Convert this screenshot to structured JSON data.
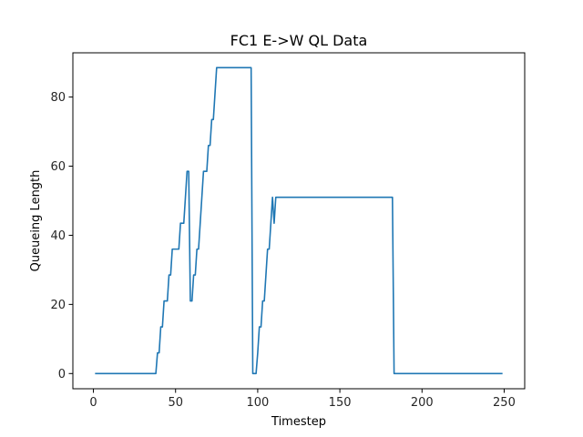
{
  "chart_data": {
    "type": "line",
    "title": "FC1 E->W QL Data",
    "xlabel": "Timestep",
    "ylabel": "Queueing Length",
    "xlim": [
      -12.5,
      262.5
    ],
    "ylim": [
      -4.4,
      92.8
    ],
    "xticks": [
      0,
      50,
      100,
      150,
      200,
      250
    ],
    "yticks": [
      0,
      20,
      40,
      60,
      80
    ],
    "grid": false,
    "series": [
      {
        "color": "#1f77b4",
        "points": [
          [
            1,
            0
          ],
          [
            38,
            0
          ],
          [
            39,
            6
          ],
          [
            40,
            6
          ],
          [
            41,
            13.5
          ],
          [
            42,
            13.5
          ],
          [
            43,
            21
          ],
          [
            45,
            21
          ],
          [
            46,
            28.5
          ],
          [
            47,
            28.5
          ],
          [
            48,
            36
          ],
          [
            52,
            36
          ],
          [
            53,
            43.5
          ],
          [
            55,
            43.5
          ],
          [
            56,
            51
          ],
          [
            57,
            58.5
          ],
          [
            58,
            58.5
          ],
          [
            59,
            21
          ],
          [
            60,
            21
          ],
          [
            61,
            28.5
          ],
          [
            62,
            28.5
          ],
          [
            63,
            36
          ],
          [
            64,
            36
          ],
          [
            65,
            43.5
          ],
          [
            66,
            51
          ],
          [
            67,
            58.5
          ],
          [
            69,
            58.5
          ],
          [
            70,
            66
          ],
          [
            71,
            66
          ],
          [
            72,
            73.5
          ],
          [
            73,
            73.5
          ],
          [
            75,
            88.5
          ],
          [
            96,
            88.5
          ],
          [
            97,
            0
          ],
          [
            99,
            0
          ],
          [
            100,
            6
          ],
          [
            101,
            13.5
          ],
          [
            102,
            13.5
          ],
          [
            103,
            21
          ],
          [
            104,
            21
          ],
          [
            105,
            28.5
          ],
          [
            106,
            36
          ],
          [
            107,
            36
          ],
          [
            108,
            43.5
          ],
          [
            109,
            51
          ],
          [
            110,
            43.5
          ],
          [
            111,
            51
          ],
          [
            182,
            51
          ],
          [
            183,
            0
          ],
          [
            249,
            0
          ]
        ]
      }
    ]
  }
}
